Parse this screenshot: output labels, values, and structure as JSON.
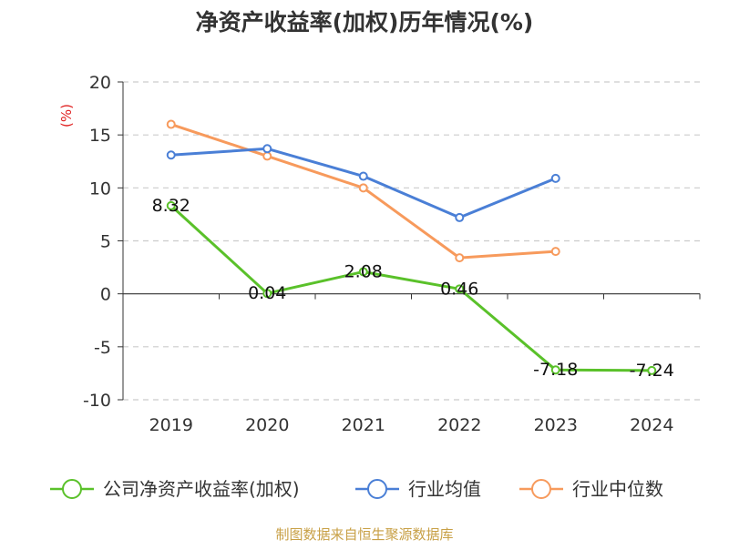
{
  "chart_data": {
    "type": "line",
    "title": "净资产收益率(加权)历年情况(%)",
    "ylabel": "(%)",
    "xlabel": "",
    "categories": [
      "2019",
      "2020",
      "2021",
      "2022",
      "2023",
      "2024"
    ],
    "ylim": [
      -10,
      20
    ],
    "yticks": [
      20,
      15,
      10,
      5,
      0,
      -5,
      -10
    ],
    "grid": true,
    "legend_position": "bottom",
    "series": [
      {
        "name": "公司净资产收益率(加权)",
        "color": "#5ac12a",
        "values": [
          8.32,
          0.04,
          2.08,
          0.46,
          -7.18,
          -7.24
        ],
        "data_labels": [
          "8.32",
          "0.04",
          "2.08",
          "0.46",
          "-7.18",
          "-7.24"
        ]
      },
      {
        "name": "行业均值",
        "color": "#4a7fd6",
        "values": [
          13.1,
          13.7,
          11.1,
          7.2,
          10.9,
          null
        ]
      },
      {
        "name": "行业中位数",
        "color": "#f79a5c",
        "values": [
          16.0,
          13.0,
          10.0,
          3.4,
          4.0,
          null
        ]
      }
    ]
  },
  "colors": {
    "ylabel": "#e02020",
    "source": "#c8a046",
    "grid": "#cccccc",
    "axis": "#333333"
  },
  "source": "制图数据来自恒生聚源数据库"
}
